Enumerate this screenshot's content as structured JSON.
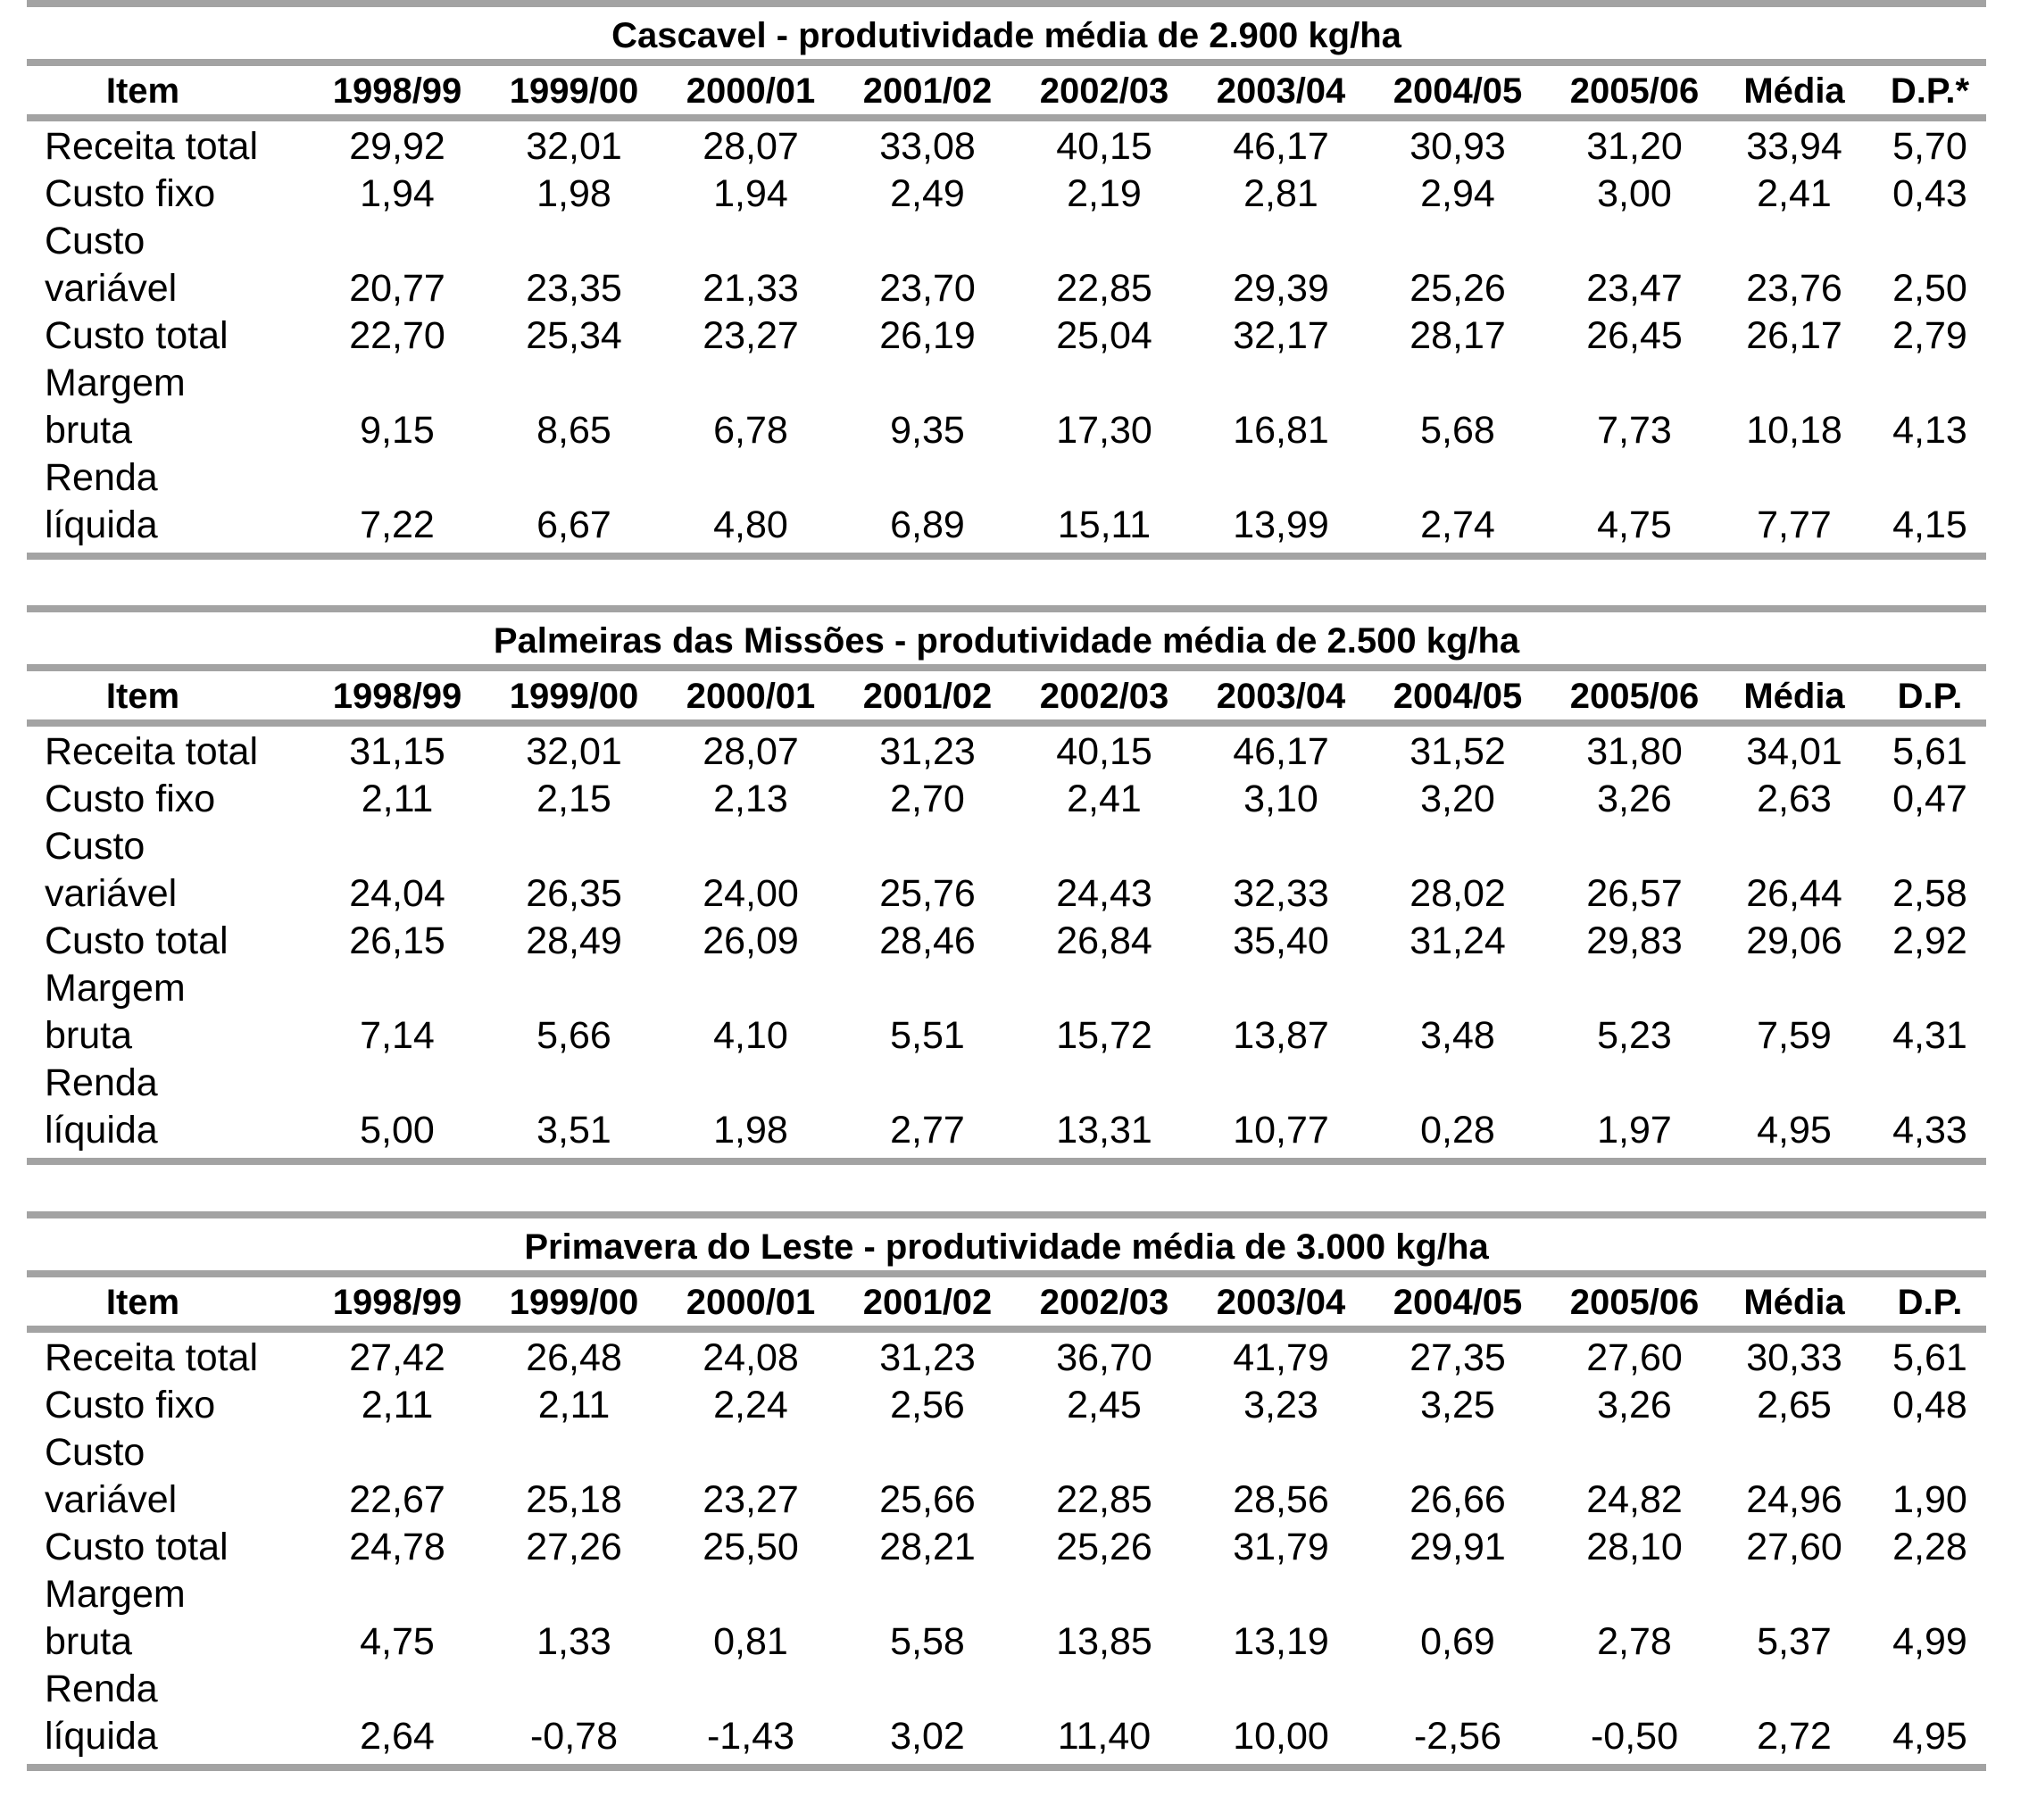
{
  "columns": [
    "Item",
    "1998/99",
    "1999/00",
    "2000/01",
    "2001/02",
    "2002/03",
    "2003/04",
    "2004/05",
    "2005/06",
    "Média"
  ],
  "tables": [
    {
      "title": "Cascavel - produtividade média de 2.900 kg/ha",
      "last_header": "D.P.*",
      "rows": [
        {
          "label": [
            "Receita total"
          ],
          "values": [
            "29,92",
            "32,01",
            "28,07",
            "33,08",
            "40,15",
            "46,17",
            "30,93",
            "31,20",
            "33,94",
            "5,70"
          ]
        },
        {
          "label": [
            "Custo fixo"
          ],
          "values": [
            "1,94",
            "1,98",
            "1,94",
            "2,49",
            "2,19",
            "2,81",
            "2,94",
            "3,00",
            "2,41",
            "0,43"
          ]
        },
        {
          "label": [
            "Custo",
            "variável"
          ],
          "values": [
            "20,77",
            "23,35",
            "21,33",
            "23,70",
            "22,85",
            "29,39",
            "25,26",
            "23,47",
            "23,76",
            "2,50"
          ]
        },
        {
          "label": [
            "Custo total"
          ],
          "values": [
            "22,70",
            "25,34",
            "23,27",
            "26,19",
            "25,04",
            "32,17",
            "28,17",
            "26,45",
            "26,17",
            "2,79"
          ]
        },
        {
          "label": [
            "Margem",
            "bruta"
          ],
          "values": [
            "9,15",
            "8,65",
            "6,78",
            "9,35",
            "17,30",
            "16,81",
            "5,68",
            "7,73",
            "10,18",
            "4,13"
          ]
        },
        {
          "label": [
            "Renda",
            "líquida"
          ],
          "values": [
            "7,22",
            "6,67",
            "4,80",
            "6,89",
            "15,11",
            "13,99",
            "2,74",
            "4,75",
            "7,77",
            "4,15"
          ]
        }
      ]
    },
    {
      "title": "Palmeiras das Missões - produtividade média de 2.500 kg/ha",
      "last_header": "D.P.",
      "rows": [
        {
          "label": [
            "Receita total"
          ],
          "values": [
            "31,15",
            "32,01",
            "28,07",
            "31,23",
            "40,15",
            "46,17",
            "31,52",
            "31,80",
            "34,01",
            "5,61"
          ]
        },
        {
          "label": [
            "Custo fixo"
          ],
          "values": [
            "2,11",
            "2,15",
            "2,13",
            "2,70",
            "2,41",
            "3,10",
            "3,20",
            "3,26",
            "2,63",
            "0,47"
          ]
        },
        {
          "label": [
            "Custo",
            "variável"
          ],
          "values": [
            "24,04",
            "26,35",
            "24,00",
            "25,76",
            "24,43",
            "32,33",
            "28,02",
            "26,57",
            "26,44",
            "2,58"
          ]
        },
        {
          "label": [
            "Custo total"
          ],
          "values": [
            "26,15",
            "28,49",
            "26,09",
            "28,46",
            "26,84",
            "35,40",
            "31,24",
            "29,83",
            "29,06",
            "2,92"
          ]
        },
        {
          "label": [
            "Margem",
            "bruta"
          ],
          "values": [
            "7,14",
            "5,66",
            "4,10",
            "5,51",
            "15,72",
            "13,87",
            "3,48",
            "5,23",
            "7,59",
            "4,31"
          ]
        },
        {
          "label": [
            "Renda",
            "líquida"
          ],
          "values": [
            "5,00",
            "3,51",
            "1,98",
            "2,77",
            "13,31",
            "10,77",
            "0,28",
            "1,97",
            "4,95",
            "4,33"
          ]
        }
      ]
    },
    {
      "title": "Primavera do Leste - produtividade média de 3.000 kg/ha",
      "last_header": "D.P.",
      "rows": [
        {
          "label": [
            "Receita total"
          ],
          "values": [
            "27,42",
            "26,48",
            "24,08",
            "31,23",
            "36,70",
            "41,79",
            "27,35",
            "27,60",
            "30,33",
            "5,61"
          ]
        },
        {
          "label": [
            "Custo fixo"
          ],
          "values": [
            "2,11",
            "2,11",
            "2,24",
            "2,56",
            "2,45",
            "3,23",
            "3,25",
            "3,26",
            "2,65",
            "0,48"
          ]
        },
        {
          "label": [
            "Custo",
            "variável"
          ],
          "values": [
            "22,67",
            "25,18",
            "23,27",
            "25,66",
            "22,85",
            "28,56",
            "26,66",
            "24,82",
            "24,96",
            "1,90"
          ]
        },
        {
          "label": [
            "Custo total"
          ],
          "values": [
            "24,78",
            "27,26",
            "25,50",
            "28,21",
            "25,26",
            "31,79",
            "29,91",
            "28,10",
            "27,60",
            "2,28"
          ]
        },
        {
          "label": [
            "Margem",
            "bruta"
          ],
          "values": [
            "4,75",
            "1,33",
            "0,81",
            "5,58",
            "13,85",
            "13,19",
            "0,69",
            "2,78",
            "5,37",
            "4,99"
          ]
        },
        {
          "label": [
            "Renda",
            "líquida"
          ],
          "values": [
            "2,64",
            "-0,78",
            "-1,43",
            "3,02",
            "11,40",
            "10,00",
            "-2,56",
            "-0,50",
            "2,72",
            "4,95"
          ]
        }
      ]
    }
  ]
}
